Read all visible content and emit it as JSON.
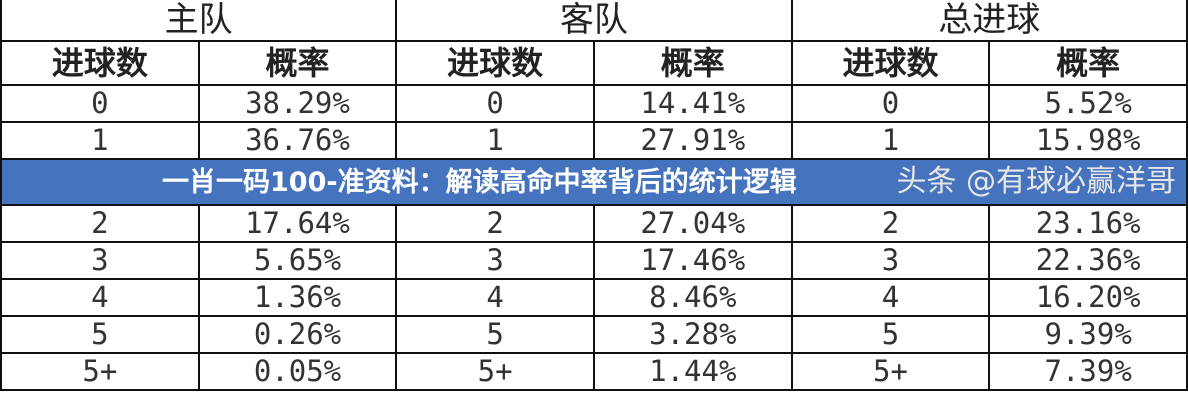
{
  "groups": [
    "主队",
    "客队",
    "总进球"
  ],
  "sub_headers": [
    "进球数",
    "概率",
    "进球数",
    "概率",
    "进球数",
    "概率"
  ],
  "rows": [
    [
      "0",
      "38.29%",
      "0",
      "14.41%",
      "0",
      "5.52%"
    ],
    [
      "1",
      "36.76%",
      "1",
      "27.91%",
      "1",
      "15.98%"
    ],
    [
      "2",
      "17.64%",
      "2",
      "27.04%",
      "2",
      "23.16%"
    ],
    [
      "3",
      "5.65%",
      "3",
      "17.46%",
      "3",
      "22.36%"
    ],
    [
      "4",
      "1.36%",
      "4",
      "8.46%",
      "4",
      "16.20%"
    ],
    [
      "5",
      "0.26%",
      "5",
      "3.28%",
      "5",
      "9.39%"
    ],
    [
      "5+",
      "0.05%",
      "5+",
      "1.44%",
      "5+",
      "7.39%"
    ]
  ],
  "banner_title": "一肖一码100-准资料：解读高命中率背后的统计逻辑",
  "watermark": "头条 @有球必赢洋哥",
  "colors": {
    "banner": "#4673be",
    "border": "#111111"
  }
}
